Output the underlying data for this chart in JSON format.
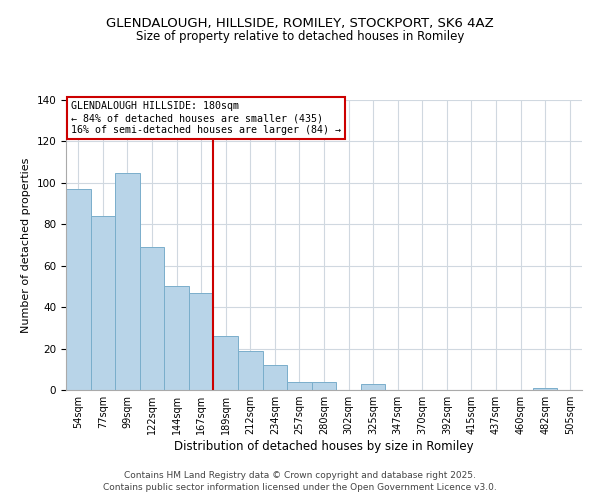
{
  "title": "GLENDALOUGH, HILLSIDE, ROMILEY, STOCKPORT, SK6 4AZ",
  "subtitle": "Size of property relative to detached houses in Romiley",
  "xlabel": "Distribution of detached houses by size in Romiley",
  "ylabel": "Number of detached properties",
  "categories": [
    "54sqm",
    "77sqm",
    "99sqm",
    "122sqm",
    "144sqm",
    "167sqm",
    "189sqm",
    "212sqm",
    "234sqm",
    "257sqm",
    "280sqm",
    "302sqm",
    "325sqm",
    "347sqm",
    "370sqm",
    "392sqm",
    "415sqm",
    "437sqm",
    "460sqm",
    "482sqm",
    "505sqm"
  ],
  "values": [
    97,
    84,
    105,
    69,
    50,
    47,
    26,
    19,
    12,
    4,
    4,
    0,
    3,
    0,
    0,
    0,
    0,
    0,
    0,
    1,
    0
  ],
  "bar_color": "#b8d4e8",
  "bar_edge_color": "#7aaecb",
  "vline_x_index": 6.0,
  "vline_color": "#cc0000",
  "annotation_title": "GLENDALOUGH HILLSIDE: 180sqm",
  "annotation_line1": "← 84% of detached houses are smaller (435)",
  "annotation_line2": "16% of semi-detached houses are larger (84) →",
  "annotation_box_color": "#ffffff",
  "annotation_box_edge": "#cc0000",
  "ylim": [
    0,
    140
  ],
  "yticks": [
    0,
    20,
    40,
    60,
    80,
    100,
    120,
    140
  ],
  "background_color": "#ffffff",
  "grid_color": "#d0d8e0",
  "footer_line1": "Contains HM Land Registry data © Crown copyright and database right 2025.",
  "footer_line2": "Contains public sector information licensed under the Open Government Licence v3.0.",
  "title_fontsize": 9.5,
  "subtitle_fontsize": 8.5
}
